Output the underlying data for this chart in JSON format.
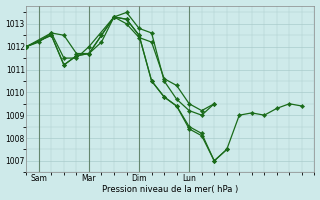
{
  "background_color": "#ceeaea",
  "grid_color": "#aacccc",
  "line_color": "#1a6b1a",
  "marker_color": "#1a6b1a",
  "xlabel": "Pression niveau de la mer( hPa )",
  "ylim": [
    1006.5,
    1013.8
  ],
  "yticks": [
    1007,
    1008,
    1009,
    1010,
    1011,
    1012,
    1013
  ],
  "xlim": [
    0,
    96
  ],
  "xtick_positions": [
    6,
    30,
    54,
    78
  ],
  "xtick_labels": [
    "Sam",
    "Mar",
    "Dim",
    "Lun"
  ],
  "day_lines": [
    6,
    30,
    54,
    78
  ],
  "series": [
    [
      0,
      1012.0,
      6,
      1012.2,
      12,
      1012.6,
      18,
      1012.5,
      24,
      1011.7,
      30,
      1011.7,
      36,
      1012.2,
      42,
      1013.3,
      48,
      1013.0,
      54,
      1012.4,
      60,
      1012.2,
      66,
      1010.6,
      72,
      1010.3,
      78,
      1009.5,
      84,
      1009.2,
      90,
      1009.5
    ],
    [
      0,
      1012.0,
      12,
      1012.6,
      18,
      1011.5,
      24,
      1011.5,
      30,
      1012.0,
      42,
      1013.3,
      48,
      1013.5,
      54,
      1012.8,
      60,
      1012.6,
      66,
      1010.5,
      72,
      1009.7,
      78,
      1009.2,
      84,
      1009.0,
      90,
      1009.5
    ],
    [
      0,
      1012.0,
      12,
      1012.5,
      18,
      1011.2,
      24,
      1011.6,
      30,
      1011.7,
      36,
      1012.5,
      42,
      1013.3,
      48,
      1013.2,
      54,
      1012.5,
      60,
      1010.5,
      66,
      1009.8,
      72,
      1009.4,
      78,
      1008.5,
      84,
      1008.2,
      90,
      1007.0,
      96,
      1007.5
    ],
    [
      0,
      1012.0,
      12,
      1012.5,
      18,
      1011.2,
      24,
      1011.6,
      30,
      1011.7,
      36,
      1012.5,
      42,
      1013.3,
      48,
      1013.2,
      54,
      1012.5,
      60,
      1010.5,
      66,
      1009.8,
      72,
      1009.4,
      78,
      1008.4,
      84,
      1008.1,
      90,
      1007.0,
      96,
      1007.5,
      102,
      1009.0,
      108,
      1009.1,
      114,
      1009.0,
      120,
      1009.3,
      126,
      1009.5,
      132,
      1009.4
    ]
  ]
}
